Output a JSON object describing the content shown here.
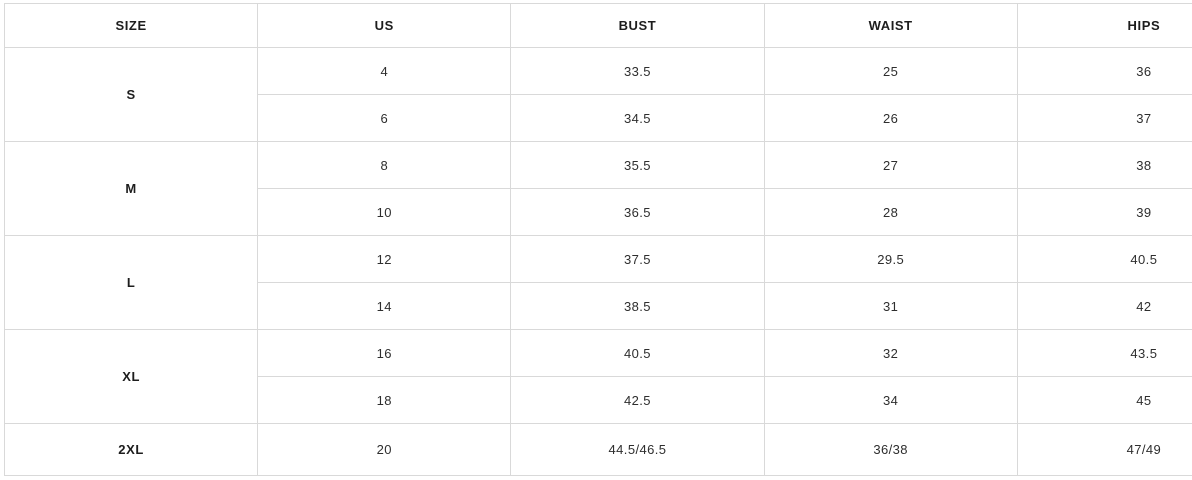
{
  "size_chart": {
    "columns": {
      "size": "SIZE",
      "us": "US",
      "bust": "BUST",
      "waist": "WAIST",
      "hips": "HIPS"
    },
    "groups": [
      {
        "size": "S",
        "rows": [
          {
            "us": "4",
            "bust": "33.5",
            "waist": "25",
            "hips": "36"
          },
          {
            "us": "6",
            "bust": "34.5",
            "waist": "26",
            "hips": "37"
          }
        ]
      },
      {
        "size": "M",
        "rows": [
          {
            "us": "8",
            "bust": "35.5",
            "waist": "27",
            "hips": "38"
          },
          {
            "us": "10",
            "bust": "36.5",
            "waist": "28",
            "hips": "39"
          }
        ]
      },
      {
        "size": "L",
        "rows": [
          {
            "us": "12",
            "bust": "37.5",
            "waist": "29.5",
            "hips": "40.5"
          },
          {
            "us": "14",
            "bust": "38.5",
            "waist": "31",
            "hips": "42"
          }
        ]
      },
      {
        "size": "XL",
        "rows": [
          {
            "us": "16",
            "bust": "40.5",
            "waist": "32",
            "hips": "43.5"
          },
          {
            "us": "18",
            "bust": "42.5",
            "waist": "34",
            "hips": "45"
          }
        ]
      },
      {
        "size": "2XL",
        "rows": [
          {
            "us": "20",
            "bust": "44.5/46.5",
            "waist": "36/38",
            "hips": "47/49"
          }
        ]
      }
    ],
    "colors": {
      "border": "#d9d9d9",
      "header_text": "#1d1d1d",
      "cell_text": "#2e2e2e",
      "background": "#ffffff"
    }
  },
  "chart_data": {
    "type": "table",
    "title": "",
    "columns": [
      "SIZE",
      "US",
      "BUST",
      "WAIST",
      "HIPS"
    ],
    "rows": [
      [
        "S",
        "4",
        "33.5",
        "25",
        "36"
      ],
      [
        "S",
        "6",
        "34.5",
        "26",
        "37"
      ],
      [
        "M",
        "8",
        "35.5",
        "27",
        "38"
      ],
      [
        "M",
        "10",
        "36.5",
        "28",
        "39"
      ],
      [
        "L",
        "12",
        "37.5",
        "29.5",
        "40.5"
      ],
      [
        "L",
        "14",
        "38.5",
        "31",
        "42"
      ],
      [
        "XL",
        "16",
        "40.5",
        "32",
        "43.5"
      ],
      [
        "XL",
        "18",
        "42.5",
        "34",
        "45"
      ],
      [
        "2XL",
        "20",
        "44.5/46.5",
        "36/38",
        "47/49"
      ]
    ]
  }
}
